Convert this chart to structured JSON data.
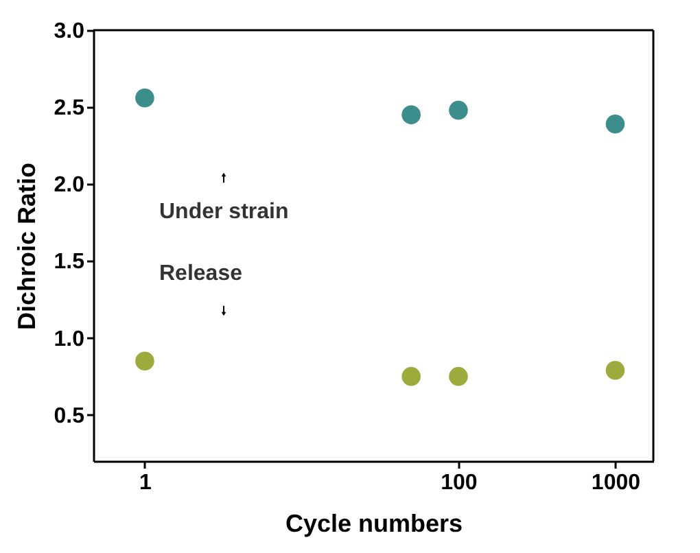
{
  "chart_data": {
    "type": "scatter",
    "log": "x",
    "xlim": [
      0.47,
      1750
    ],
    "xticks": [
      1,
      100,
      1000
    ],
    "ylim": [
      0.2,
      3.0
    ],
    "yticks": [
      {
        "value": 0.5,
        "label": "0.5"
      },
      {
        "value": 1,
        "label": "1.0"
      },
      {
        "value": 1.5,
        "label": "1.5"
      },
      {
        "value": 2,
        "label": "2.0"
      },
      {
        "value": 2.5,
        "label": "2.5"
      },
      {
        "value": 3,
        "label": "3.0"
      }
    ],
    "xlabel": "Cycle numbers",
    "ylabel": "Dichroic Ratio",
    "marker": "circle",
    "annotations": [
      "Under strain",
      "Release"
    ],
    "series": [
      {
        "color": "#3b8e8c",
        "x": [
          1,
          50,
          100,
          1000
        ],
        "values": [
          2.56,
          2.45,
          2.48,
          2.39
        ]
      },
      {
        "color": "#9cab3c",
        "x": [
          1,
          50,
          100,
          1000
        ],
        "values": [
          0.85,
          0.75,
          0.75,
          0.79
        ]
      }
    ]
  }
}
